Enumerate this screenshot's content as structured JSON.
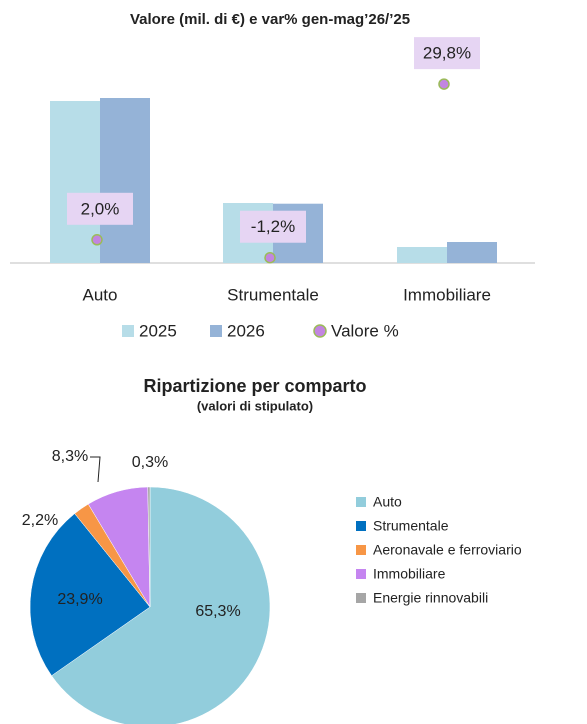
{
  "chart_data": [
    {
      "type": "bar",
      "title": "Valore (mil. di €) e var% gen-mag’26/’25",
      "categories": [
        "Auto",
        "Strumentale",
        "Immobiliare"
      ],
      "series": [
        {
          "name": "2025",
          "color": "#b7dde8",
          "values": [
            162,
            60,
            16
          ]
        },
        {
          "name": "2026",
          "color": "#95b3d7",
          "values": [
            165,
            59.3,
            21
          ]
        },
        {
          "name": "Valore %",
          "axis": "y2",
          "color": "#c285e0",
          "values": [
            2.0,
            -1.2,
            29.8
          ],
          "value_labels": [
            "2,0%",
            "-1,2%",
            "29,8%"
          ]
        }
      ]
    },
    {
      "type": "pie",
      "title": "Ripartizione per comparto",
      "subtitle": "(valori di stipulato)",
      "categories": [
        "Auto",
        "Strumentale",
        "Aeronavale e ferroviario",
        "Immobiliare",
        "Energie rinnovabili"
      ],
      "values": [
        65.3,
        23.9,
        2.2,
        8.3,
        0.3
      ],
      "value_labels": [
        "65,3%",
        "23,9%",
        "2,2%",
        "8,3%",
        "0,3%"
      ],
      "colors": [
        "#92cddc",
        "#0070c0",
        "#f79646",
        "#c585f0",
        "#a6a6a6"
      ]
    }
  ]
}
